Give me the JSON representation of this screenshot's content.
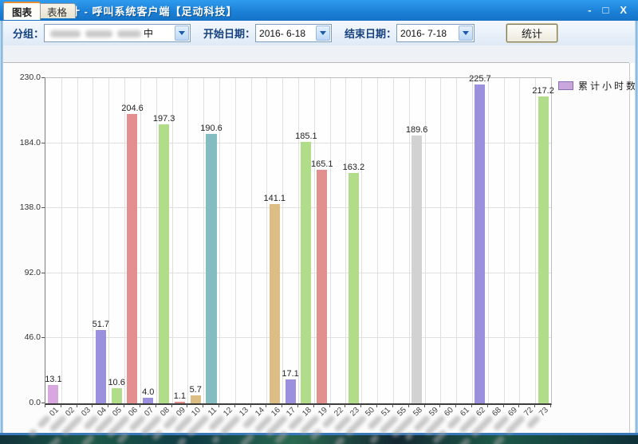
{
  "window": {
    "title": "在线率统计 - 呼叫系统客户端【足动科技】",
    "controls": {
      "minimize": "-",
      "maximize": "□",
      "close": "X"
    }
  },
  "toolbar": {
    "group_label": "分组：",
    "group_visible_text": "中",
    "start_date_label": "开始日期：",
    "start_date_value": "2016- 6-18",
    "end_date_label": "结束日期：",
    "end_date_value": "2016- 7-18",
    "stats_button_label": "统计"
  },
  "tabs": [
    {
      "label": "图表",
      "active": true
    },
    {
      "label": "表格",
      "active": false
    }
  ],
  "legend": {
    "label": "累计小时数",
    "swatch_color": "#c9a7dd"
  },
  "chart_data": {
    "type": "bar",
    "title": "",
    "xlabel": "",
    "ylabel": "",
    "series_name": "累计小时数",
    "ylim": [
      0,
      230
    ],
    "yticks": [
      "0.0",
      "46.0",
      "92.0",
      "138.0",
      "184.0",
      "230.0"
    ],
    "grid": true,
    "legend_position": "top-right",
    "categories": [
      "01",
      "02",
      "03",
      "04",
      "05",
      "06",
      "07",
      "08",
      "09",
      "10",
      "11",
      "12",
      "13",
      "14",
      "16",
      "17",
      "18",
      "19",
      "22",
      "23",
      "50",
      "51",
      "55",
      "58",
      "59",
      "60",
      "61",
      "62",
      "68",
      "69",
      "72",
      "73"
    ],
    "values": [
      13.1,
      null,
      null,
      51.7,
      10.6,
      204.6,
      4.0,
      197.3,
      1.1,
      5.7,
      190.6,
      null,
      null,
      null,
      141.1,
      17.1,
      185.1,
      165.1,
      null,
      163.2,
      null,
      null,
      null,
      189.6,
      null,
      null,
      null,
      225.7,
      null,
      null,
      null,
      217.2
    ],
    "bar_colors": [
      "#d9a7e0",
      null,
      null,
      "#9a90dd",
      "#b1dd8b",
      "#e38f8f",
      "#9a90dd",
      "#b1dd8b",
      "#e38f8f",
      "#dcbd84",
      "#84bdbf",
      null,
      null,
      null,
      "#dcbd84",
      "#9a90dd",
      "#b1dd8b",
      "#e38f8f",
      null,
      "#b1dd8b",
      null,
      null,
      null,
      "#d2d2d2",
      null,
      null,
      null,
      "#9a90dd",
      null,
      null,
      null,
      "#b1dd8b"
    ]
  },
  "colors": {
    "titlebar": "#1a7fd6",
    "toolbar_label": "#16417f",
    "active_tab_accent": "#e39134",
    "gridline": "#e0e0e0",
    "axis": "#3c3c3c"
  }
}
